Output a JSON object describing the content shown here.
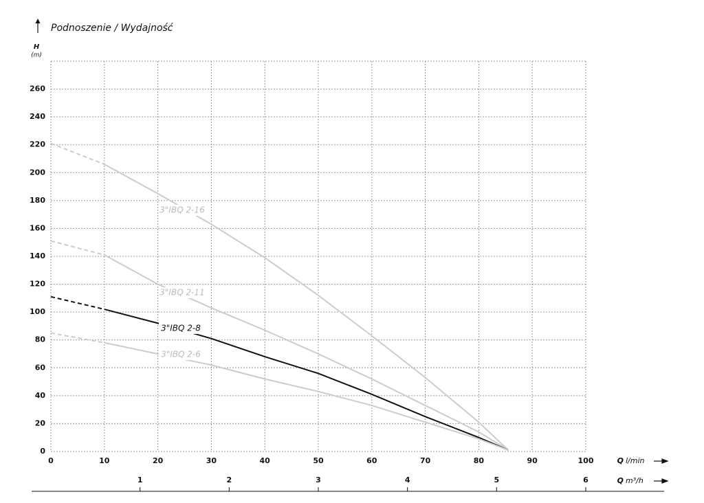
{
  "chart_data": {
    "type": "line",
    "title": "Podnoszenie / Wydajność",
    "y_label": {
      "symbol": "H",
      "unit": "(m)"
    },
    "x_label": {
      "symbol": "Q",
      "unit": "l/min"
    },
    "x2_label": {
      "symbol": "Q",
      "unit": "m³/h"
    },
    "xlim": [
      0,
      100
    ],
    "xticks": [
      0,
      10,
      20,
      30,
      40,
      50,
      60,
      70,
      80,
      90,
      100
    ],
    "x2lim": [
      0,
      6
    ],
    "x2ticks": [
      1,
      2,
      3,
      4,
      5,
      6
    ],
    "ylim": [
      0,
      280
    ],
    "yticks": [
      0,
      20,
      40,
      60,
      80,
      100,
      120,
      140,
      160,
      180,
      200,
      220,
      240,
      260
    ],
    "grid": true,
    "grid_style": "dotted",
    "dashed_below_x": 10,
    "x": [
      0,
      10,
      20,
      30,
      40,
      50,
      60,
      70,
      80,
      85.5
    ],
    "series": [
      {
        "name": "3\"IBQ 2-16",
        "color": "#cccccc",
        "label_color": "#bbbbbb",
        "values": [
          221,
          206,
          185,
          163,
          139,
          112,
          83,
          53,
          21,
          1
        ]
      },
      {
        "name": "3\"IBQ 2-11",
        "color": "#cccccc",
        "label_color": "#bbbbbb",
        "values": [
          151,
          141,
          120,
          103,
          87,
          70,
          52,
          33,
          14,
          1
        ]
      },
      {
        "name": "3\"IBQ 2-8",
        "color": "#111111",
        "label_color": "#111111",
        "values": [
          111,
          102,
          92,
          81,
          68,
          56,
          41,
          25,
          10,
          1
        ]
      },
      {
        "name": "3\"IBQ 2-6",
        "color": "#cccccc",
        "label_color": "#bbbbbb",
        "values": [
          85,
          78,
          70,
          62,
          52,
          43,
          33,
          21,
          9,
          1
        ]
      }
    ]
  }
}
